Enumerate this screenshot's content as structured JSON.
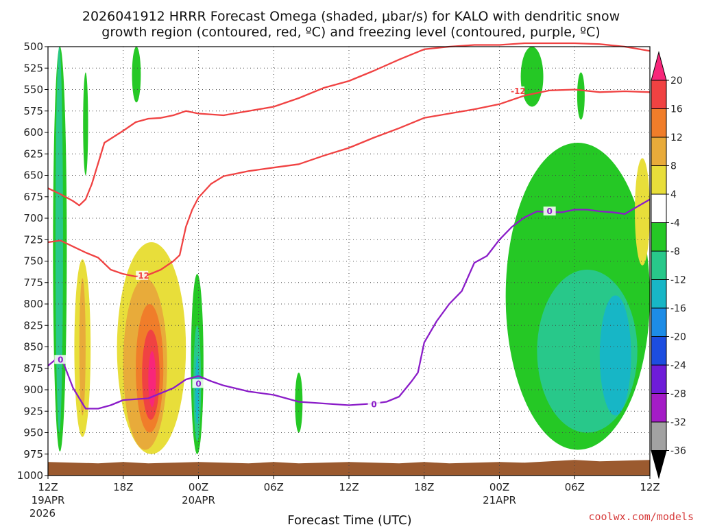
{
  "title_line1": "2026041912 HRRR Forecast Omega (shaded, μbar/s) for KALO with dendritic snow",
  "title_line2": "growth region (contoured, red, ºC) and freezing level (contoured, purple, ºC)",
  "credit": "coolwx.com/models",
  "chart_data": {
    "type": "heatmap",
    "title": "2026041912 HRRR Forecast Omega (shaded, μbar/s) for KALO with dendritic snow growth region (contoured, red, ºC) and freezing level (contoured, purple, ºC)",
    "xlabel": "Forecast Time (UTC)",
    "ylabel": "",
    "x_tick_labels": [
      "12Z",
      "18Z",
      "00Z",
      "06Z",
      "12Z",
      "18Z",
      "00Z",
      "06Z",
      "12Z"
    ],
    "x_date_labels": [
      {
        "time": "12Z",
        "date": "19APR",
        "year": "2026"
      },
      {
        "time": "00Z",
        "date": "20APR",
        "year": ""
      },
      {
        "time": "00Z",
        "date": "21APR",
        "year": ""
      }
    ],
    "x_hours_range": [
      0,
      48
    ],
    "y_pressure_levels_hPa": [
      500,
      525,
      550,
      575,
      600,
      625,
      650,
      675,
      700,
      725,
      750,
      775,
      800,
      825,
      850,
      875,
      900,
      925,
      950,
      975,
      1000
    ],
    "ylim": [
      1000,
      500
    ],
    "grid": true,
    "colorbar": {
      "levels": [
        20,
        16,
        12,
        8,
        4,
        -4,
        -8,
        -12,
        -16,
        -20,
        -24,
        -28,
        -32,
        -36
      ],
      "colors": [
        "#f8267a",
        "#f04242",
        "#f07d2a",
        "#e8ab3a",
        "#e8de3a",
        "#ffffff",
        "#25c825",
        "#28c88a",
        "#17b6c6",
        "#1d8ce6",
        "#1c4de0",
        "#6e1cd8",
        "#a41cc6",
        "#a2a2a2"
      ]
    },
    "omega_regions": [
      {
        "level": "-8",
        "color": "#25c825",
        "hours": [
          0.4,
          1.5
        ],
        "p": [
          500,
          972
        ]
      },
      {
        "level": "-12",
        "color": "#28c88a",
        "hours": [
          0.6,
          1.2
        ],
        "p": [
          500,
          950
        ]
      },
      {
        "level": "-8",
        "color": "#25c825",
        "hours": [
          2.8,
          3.2
        ],
        "p": [
          530,
          650
        ]
      },
      {
        "level": "-8",
        "color": "#25c825",
        "hours": [
          6.7,
          7.4
        ],
        "p": [
          500,
          565
        ]
      },
      {
        "level": "4",
        "color": "#e8de3a",
        "hours": [
          2.1,
          3.4
        ],
        "p": [
          748,
          955
        ]
      },
      {
        "level": "8",
        "color": "#e8ab3a",
        "hours": [
          2.5,
          3.0
        ],
        "p": [
          770,
          930
        ]
      },
      {
        "level": "4",
        "color": "#e8de3a",
        "hours": [
          5.5,
          11.0
        ],
        "p": [
          728,
          975
        ]
      },
      {
        "level": "8",
        "color": "#e8ab3a",
        "hours": [
          6.0,
          9.5
        ],
        "p": [
          770,
          970
        ]
      },
      {
        "level": "12",
        "color": "#f07d2a",
        "hours": [
          7.0,
          9.2
        ],
        "p": [
          800,
          950
        ]
      },
      {
        "level": "16",
        "color": "#f04242",
        "hours": [
          7.5,
          8.9
        ],
        "p": [
          830,
          935
        ]
      },
      {
        "level": "20",
        "color": "#f8267a",
        "hours": [
          8.0,
          8.6
        ],
        "p": [
          855,
          920
        ]
      },
      {
        "level": "-8",
        "color": "#25c825",
        "hours": [
          11.4,
          12.4
        ],
        "p": [
          765,
          975
        ]
      },
      {
        "level": "-12",
        "color": "#28c88a",
        "hours": [
          11.6,
          12.2
        ],
        "p": [
          825,
          960
        ]
      },
      {
        "level": "-16",
        "color": "#17b6c6",
        "hours": [
          11.75,
          12.05
        ],
        "p": [
          860,
          940
        ]
      },
      {
        "level": "-8",
        "color": "#25c825",
        "hours": [
          19.7,
          20.3
        ],
        "p": [
          880,
          950
        ]
      },
      {
        "level": "-8",
        "color": "#25c825",
        "hours": [
          37.7,
          39.5
        ],
        "p": [
          500,
          570
        ]
      },
      {
        "level": "-8",
        "color": "#25c825",
        "hours": [
          42.2,
          42.8
        ],
        "p": [
          530,
          585
        ]
      },
      {
        "level": "-8",
        "color": "#25c825",
        "hours": [
          36.5,
          48.0
        ],
        "p": [
          612,
          970
        ]
      },
      {
        "level": "-12",
        "color": "#28c88a",
        "hours": [
          39.0,
          47.0
        ],
        "p": [
          760,
          950
        ]
      },
      {
        "level": "-16",
        "color": "#17b6c6",
        "hours": [
          44.0,
          46.5
        ],
        "p": [
          790,
          930
        ]
      },
      {
        "level": "4",
        "color": "#e8de3a",
        "hours": [
          46.8,
          48.0
        ],
        "p": [
          630,
          755
        ]
      }
    ],
    "series": [
      {
        "name": "-12",
        "color": "#f04242",
        "type": "contour",
        "x": [
          0,
          1,
          2,
          2.5,
          3,
          3.5,
          4.5,
          6,
          7,
          8,
          9,
          10,
          11,
          12,
          14,
          16,
          18,
          20,
          22,
          24,
          26,
          28,
          30,
          32,
          34,
          36,
          38,
          40,
          42,
          44,
          46,
          48
        ],
        "p": [
          665,
          672,
          680,
          685,
          678,
          660,
          612,
          598,
          588,
          584,
          583,
          580,
          575,
          578,
          580,
          575,
          570,
          560,
          548,
          540,
          528,
          515,
          503,
          500,
          498,
          498,
          496,
          496,
          496,
          497,
          500,
          505
        ]
      },
      {
        "name": "-12",
        "color": "#f04242",
        "type": "contour",
        "x": [
          0,
          1,
          2,
          3,
          4,
          5,
          6,
          7,
          8,
          9,
          10,
          10.5,
          11,
          11.5,
          12,
          13,
          14,
          16,
          18,
          20,
          22,
          24,
          26,
          28,
          30,
          32,
          34,
          36,
          38,
          40,
          42,
          44,
          46,
          48
        ],
        "p": [
          728,
          726,
          733,
          740,
          746,
          760,
          765,
          768,
          766,
          760,
          750,
          743,
          710,
          690,
          676,
          660,
          651,
          645,
          641,
          637,
          627,
          618,
          606,
          595,
          583,
          578,
          573,
          567,
          557,
          551,
          550,
          553,
          552,
          553
        ]
      },
      {
        "name": "0",
        "color": "#8a1cc8",
        "type": "contour",
        "x": [
          0,
          1,
          2,
          3,
          4,
          5,
          6,
          8,
          10,
          11,
          12,
          13,
          14,
          16,
          18,
          20,
          22,
          24,
          26,
          27,
          28,
          29,
          29.5,
          30,
          31,
          32,
          33,
          34,
          35,
          36,
          37,
          38,
          39,
          40,
          41,
          42,
          43,
          44,
          45,
          46,
          48
        ],
        "p": [
          872,
          860,
          898,
          922,
          922,
          918,
          912,
          910,
          898,
          888,
          884,
          890,
          895,
          902,
          906,
          914,
          916,
          918,
          916,
          914,
          908,
          890,
          880,
          845,
          820,
          800,
          785,
          752,
          744,
          725,
          710,
          699,
          692,
          693,
          693,
          690,
          690,
          692,
          693,
          695,
          678
        ]
      }
    ],
    "terrain_color": "#9b5a2f"
  }
}
